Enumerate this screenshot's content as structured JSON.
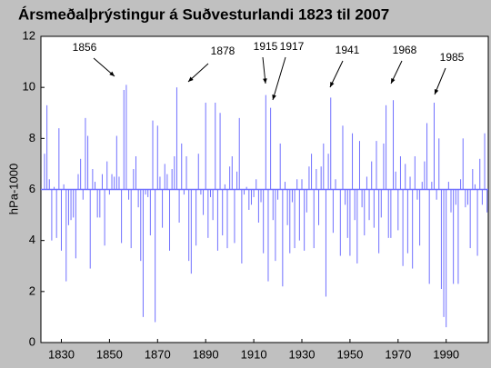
{
  "chart_data": {
    "type": "bar",
    "title": "Ársmeðalþrýstingur á Suðvesturlandi 1823 til 2007",
    "ylabel": "hPa-1000",
    "baseline": 6,
    "color": "#7070ff",
    "x": [
      1823,
      1824,
      1825,
      1826,
      1827,
      1828,
      1829,
      1830,
      1831,
      1832,
      1833,
      1834,
      1835,
      1836,
      1837,
      1838,
      1839,
      1840,
      1841,
      1842,
      1843,
      1844,
      1845,
      1846,
      1847,
      1848,
      1849,
      1850,
      1851,
      1852,
      1853,
      1854,
      1855,
      1856,
      1857,
      1858,
      1859,
      1860,
      1861,
      1862,
      1863,
      1864,
      1865,
      1866,
      1867,
      1868,
      1869,
      1870,
      1871,
      1872,
      1873,
      1874,
      1875,
      1876,
      1877,
      1878,
      1879,
      1880,
      1881,
      1882,
      1883,
      1884,
      1885,
      1886,
      1887,
      1888,
      1889,
      1890,
      1891,
      1892,
      1893,
      1894,
      1895,
      1896,
      1897,
      1898,
      1899,
      1900,
      1901,
      1902,
      1903,
      1904,
      1905,
      1906,
      1907,
      1908,
      1909,
      1910,
      1911,
      1912,
      1913,
      1914,
      1915,
      1916,
      1917,
      1918,
      1919,
      1920,
      1921,
      1922,
      1923,
      1924,
      1925,
      1926,
      1927,
      1928,
      1929,
      1930,
      1931,
      1932,
      1933,
      1934,
      1935,
      1936,
      1937,
      1938,
      1939,
      1940,
      1941,
      1942,
      1943,
      1944,
      1945,
      1946,
      1947,
      1948,
      1949,
      1950,
      1951,
      1952,
      1953,
      1954,
      1955,
      1956,
      1957,
      1958,
      1959,
      1960,
      1961,
      1962,
      1963,
      1964,
      1965,
      1966,
      1967,
      1968,
      1969,
      1970,
      1971,
      1972,
      1973,
      1974,
      1975,
      1976,
      1977,
      1978,
      1979,
      1980,
      1981,
      1982,
      1983,
      1984,
      1985,
      1986,
      1987,
      1988,
      1989,
      1990,
      1991,
      1992,
      1993,
      1994,
      1995,
      1996,
      1997,
      1998,
      1999,
      2000,
      2001,
      2002,
      2003,
      2004,
      2005,
      2006,
      2007
    ],
    "values": [
      7.4,
      9.3,
      6.4,
      4.0,
      6.1,
      4.1,
      8.4,
      3.6,
      6.2,
      2.4,
      4.6,
      4.8,
      4.9,
      3.3,
      6.6,
      7.2,
      5.6,
      8.8,
      8.1,
      2.9,
      6.8,
      6.3,
      4.9,
      4.9,
      6.6,
      3.8,
      7.1,
      5.8,
      6.6,
      6.5,
      8.1,
      6.5,
      3.9,
      9.9,
      10.1,
      5.6,
      3.7,
      6.8,
      7.3,
      5.3,
      3.2,
      1.0,
      5.8,
      5.7,
      4.2,
      8.7,
      0.8,
      8.5,
      6.5,
      4.5,
      7.0,
      6.6,
      3.6,
      6.8,
      7.3,
      10.0,
      4.7,
      7.8,
      5.8,
      7.3,
      3.2,
      2.7,
      6.0,
      3.8,
      7.4,
      5.8,
      5.0,
      9.4,
      4.1,
      5.7,
      4.8,
      9.4,
      3.6,
      9.0,
      4.2,
      6.2,
      3.7,
      6.9,
      7.3,
      3.9,
      6.7,
      8.8,
      3.1,
      5.8,
      6.1,
      5.2,
      5.4,
      5.7,
      6.4,
      4.7,
      5.5,
      3.5,
      9.7,
      2.4,
      9.2,
      4.8,
      3.2,
      5.6,
      7.8,
      2.2,
      6.3,
      4.6,
      3.5,
      5.5,
      3.7,
      6.4,
      4.0,
      6.4,
      3.6,
      5.1,
      6.9,
      7.4,
      3.7,
      6.8,
      4.6,
      6.9,
      7.8,
      1.8,
      7.4,
      9.6,
      4.3,
      6.4,
      6.0,
      3.4,
      8.5,
      5.4,
      4.1,
      3.4,
      8.2,
      4.8,
      3.1,
      7.9,
      5.3,
      4.2,
      6.5,
      4.8,
      7.1,
      4.5,
      7.9,
      3.5,
      4.9,
      7.8,
      9.3,
      4.1,
      4.1,
      9.5,
      6.7,
      4.4,
      7.3,
      3.0,
      7.0,
      3.5,
      6.5,
      2.9,
      7.3,
      5.6,
      3.8,
      6.3,
      7.1,
      8.6,
      2.3,
      6.3,
      9.4,
      5.6,
      8.0,
      2.1,
      1.0,
      0.6,
      6.3,
      5.1,
      2.3,
      5.4,
      2.3,
      6.4,
      8.0,
      5.3,
      5.4,
      3.7,
      6.8,
      6.2,
      3.4,
      7.2,
      5.4,
      8.2,
      5.1
    ],
    "xlim": [
      1821.5,
      2007.5
    ],
    "ylim": [
      0,
      12
    ],
    "xticks": [
      1830,
      1850,
      1870,
      1890,
      1910,
      1930,
      1950,
      1970,
      1990
    ],
    "yticks": [
      0,
      2,
      4,
      6,
      8,
      10,
      12
    ],
    "annotations": [
      "1856",
      "1878",
      "1915",
      "1917",
      "1941",
      "1968",
      "1985"
    ]
  }
}
